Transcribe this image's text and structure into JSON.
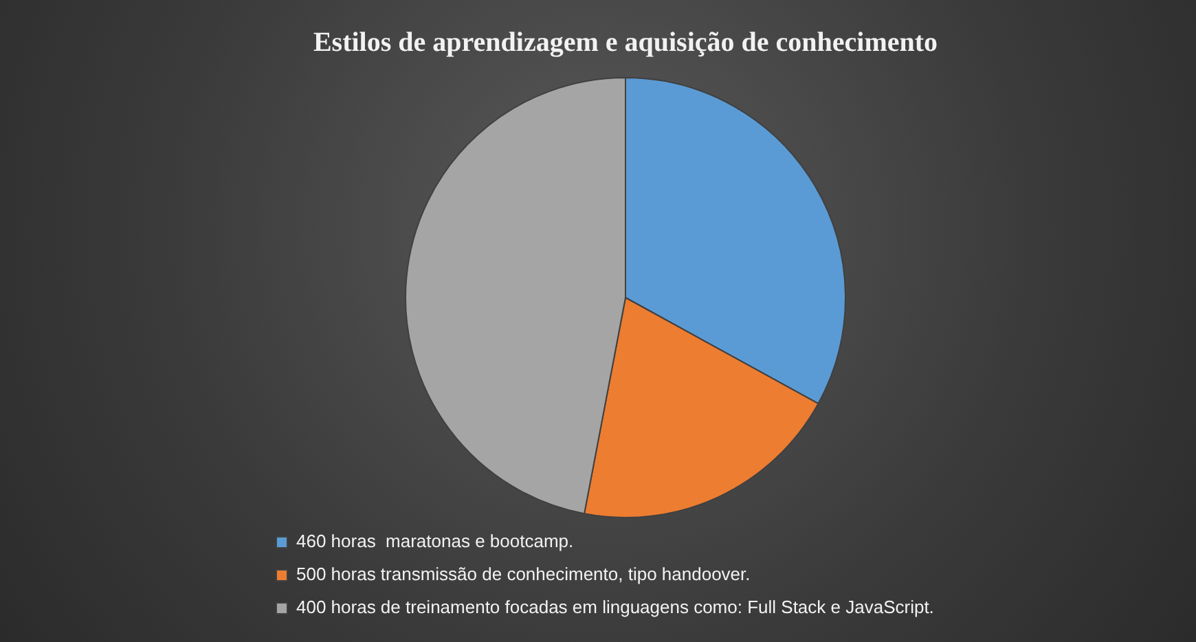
{
  "chart_data": {
    "type": "pie",
    "title": "Estilos de aprendizagem e aquisição de conhecimento",
    "categories": [
      "460 horas  maratonas e bootcamp.",
      "500 horas transmissão de conhecimento, tipo handoover.",
      "400 horas de treinamento focadas em linguagens como: Full Stack e JavaScript."
    ],
    "values": [
      33,
      20,
      47
    ],
    "colors": [
      "#5b9bd5",
      "#ed7d31",
      "#a5a5a5"
    ],
    "legend": "bottom left"
  }
}
